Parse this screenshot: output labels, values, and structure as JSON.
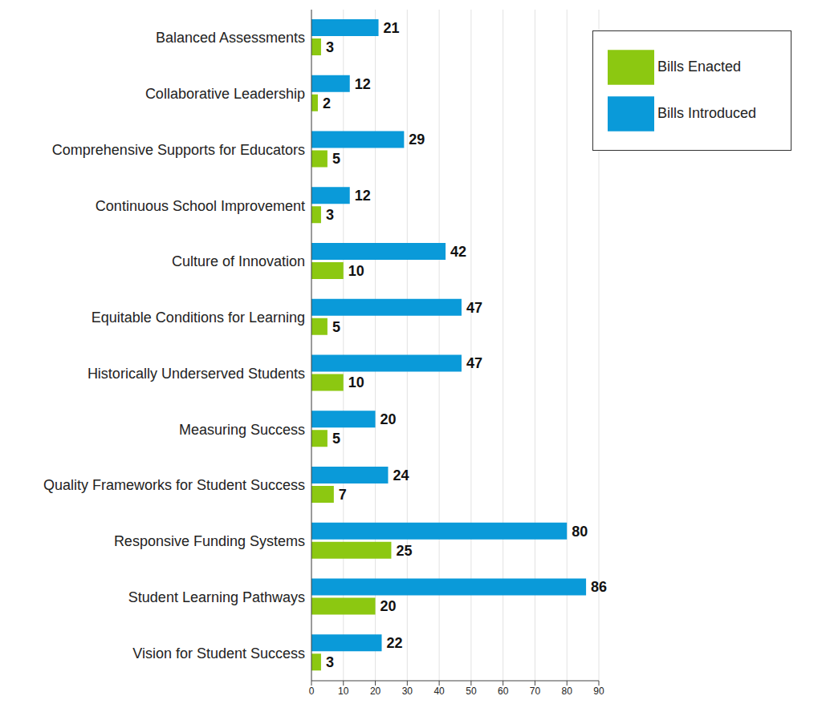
{
  "chart_data": {
    "type": "bar",
    "orientation": "horizontal",
    "categories": [
      "Balanced Assessments",
      "Collaborative Leadership",
      "Comprehensive Supports for Educators",
      "Continuous School Improvement",
      "Culture of Innovation",
      "Equitable Conditions for Learning",
      "Historically Underserved Students",
      "Measuring Success",
      "Quality Frameworks for Student Success",
      "Responsive Funding Systems",
      "Student Learning Pathways",
      "Vision for Student Success"
    ],
    "series": [
      {
        "name": "Bills Introduced",
        "color": "#0a9ad9",
        "values": [
          21,
          12,
          29,
          12,
          42,
          47,
          47,
          20,
          24,
          80,
          86,
          22
        ]
      },
      {
        "name": "Bills Enacted",
        "color": "#8cc811",
        "values": [
          3,
          2,
          5,
          3,
          10,
          5,
          10,
          5,
          7,
          25,
          20,
          3
        ]
      }
    ],
    "xlim": [
      0,
      90
    ],
    "xticks": [
      0,
      10,
      20,
      30,
      40,
      50,
      60,
      70,
      80,
      90
    ],
    "grid": true,
    "legend": "upper right",
    "data_labels": true
  }
}
